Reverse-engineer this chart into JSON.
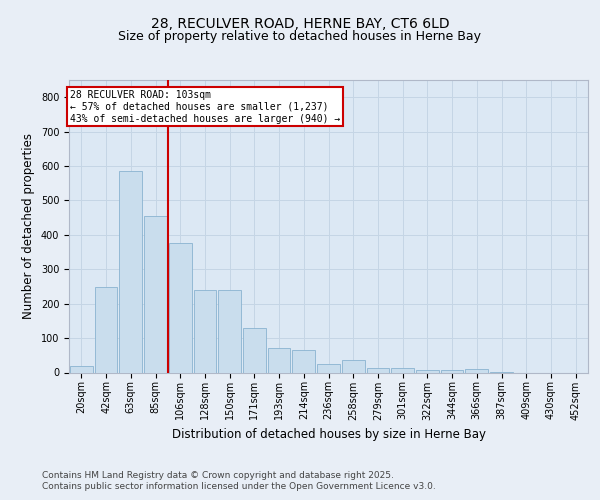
{
  "title_line1": "28, RECULVER ROAD, HERNE BAY, CT6 6LD",
  "title_line2": "Size of property relative to detached houses in Herne Bay",
  "xlabel": "Distribution of detached houses by size in Herne Bay",
  "ylabel": "Number of detached properties",
  "categories": [
    "20sqm",
    "42sqm",
    "63sqm",
    "85sqm",
    "106sqm",
    "128sqm",
    "150sqm",
    "171sqm",
    "193sqm",
    "214sqm",
    "236sqm",
    "258sqm",
    "279sqm",
    "301sqm",
    "322sqm",
    "344sqm",
    "366sqm",
    "387sqm",
    "409sqm",
    "430sqm",
    "452sqm"
  ],
  "values": [
    18,
    248,
    585,
    455,
    375,
    240,
    240,
    130,
    70,
    65,
    25,
    35,
    12,
    12,
    8,
    8,
    10,
    2,
    0,
    0,
    0
  ],
  "bar_color": "#c9dded",
  "bar_edgecolor": "#8ab3d0",
  "vline_x_index": 4,
  "vline_color": "#cc0000",
  "annotation_text": "28 RECULVER ROAD: 103sqm\n← 57% of detached houses are smaller (1,237)\n43% of semi-detached houses are larger (940) →",
  "annotation_box_edgecolor": "#cc0000",
  "annotation_box_facecolor": "#ffffff",
  "ylim": [
    0,
    850
  ],
  "yticks": [
    0,
    100,
    200,
    300,
    400,
    500,
    600,
    700,
    800
  ],
  "grid_color": "#c5d5e5",
  "background_color": "#e8eef6",
  "plot_background_color": "#dce8f4",
  "footer_line1": "Contains HM Land Registry data © Crown copyright and database right 2025.",
  "footer_line2": "Contains public sector information licensed under the Open Government Licence v3.0.",
  "title_fontsize": 10,
  "subtitle_fontsize": 9,
  "axis_label_fontsize": 8.5,
  "tick_fontsize": 7,
  "footer_fontsize": 6.5
}
